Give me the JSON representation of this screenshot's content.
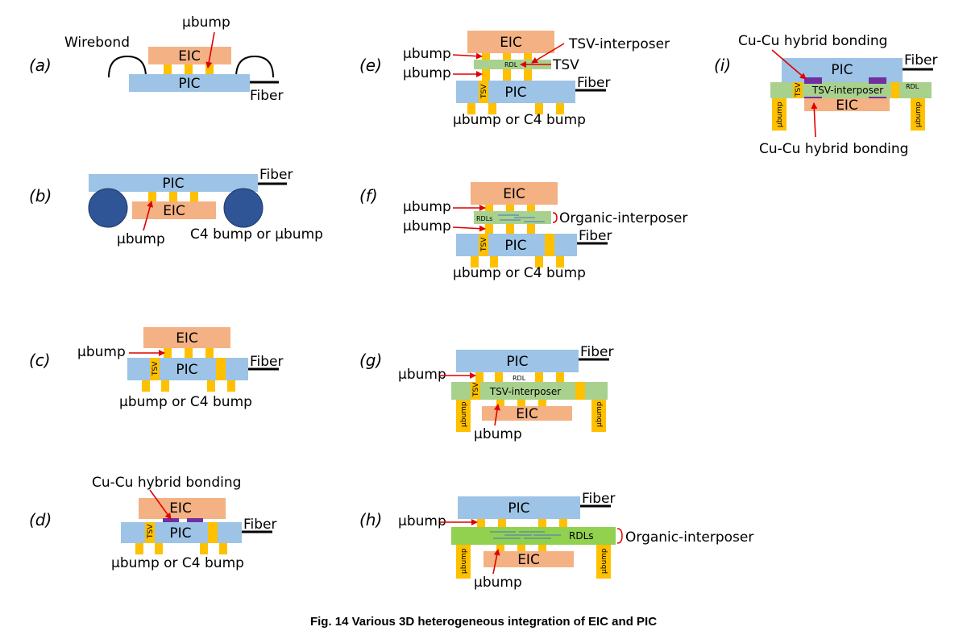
{
  "figure": {
    "caption": "Fig. 14    Various 3D heterogeneous integration of EIC and PIC"
  },
  "labels": {
    "pic": "PIC",
    "eic": "EIC",
    "fiber": "Fiber",
    "ubump": "μbump",
    "tsv": "TSV",
    "rdl": "RDL",
    "rdls": "RDLs",
    "wirebond": "Wirebond",
    "c4_or_ubump": "C4 bump or μbump",
    "ubump_or_c4": "μbump or C4 bump",
    "tsv_interposer": "TSV-interposer",
    "organic_interposer": "Organic-interposer",
    "hybrid_bonding": "Cu-Cu hybrid bonding"
  },
  "panels": {
    "a": "(a)",
    "b": "(b)",
    "c": "(c)",
    "d": "(d)",
    "e": "(e)",
    "f": "(f)",
    "g": "(g)",
    "h": "(h)",
    "i": "(i)"
  }
}
